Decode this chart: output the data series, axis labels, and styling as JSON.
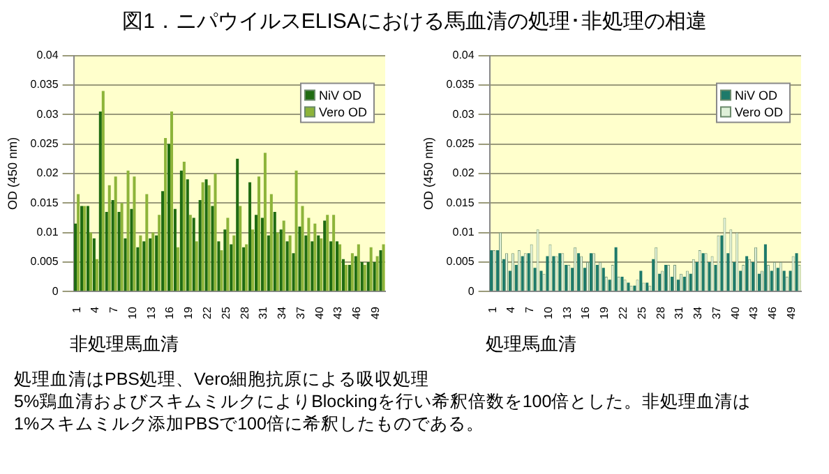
{
  "chart_data": [
    {
      "type": "bar",
      "title": "図1．ニパウイルスELISAにおける馬血清の処理･非処理の相違",
      "xlabel": "非処理馬血清",
      "ylabel": "OD (450 nm)",
      "categories": [
        "1",
        null,
        null,
        "4",
        null,
        null,
        "7",
        null,
        null,
        "10",
        null,
        null,
        "13",
        null,
        null,
        "16",
        null,
        null,
        "19",
        null,
        null,
        "22",
        null,
        null,
        "25",
        null,
        null,
        "28",
        null,
        null,
        "31",
        null,
        null,
        "34",
        null,
        null,
        "37",
        null,
        null,
        "40",
        null,
        null,
        "43",
        null,
        null,
        "46",
        null,
        null,
        "49",
        null
      ],
      "series": [
        {
          "name": "NiV OD",
          "color": "#1f6b12",
          "values": [
            0.0115,
            0.0145,
            0.0145,
            0.009,
            0.0305,
            0.0135,
            0.0155,
            0.0135,
            0.009,
            0.014,
            0.0075,
            0.0085,
            0.009,
            0.0095,
            0.017,
            0.025,
            0.014,
            0.0205,
            0.019,
            0.0125,
            0.0155,
            0.019,
            0.0145,
            0.0085,
            0.0105,
            0.008,
            0.0225,
            0.0075,
            0.0185,
            0.013,
            0.0125,
            0.0095,
            0.0135,
            0.0105,
            0.0085,
            0.0065,
            0.011,
            0.0095,
            0.0085,
            0.0095,
            0.012,
            0.0085,
            0.0085,
            0.0055,
            0.0045,
            0.006,
            0.005,
            0.005,
            0.005,
            0.007
          ]
        },
        {
          "name": "Vero OD",
          "color": "#8db43a",
          "values": [
            0.0165,
            0.0145,
            0.01,
            0.0055,
            0.034,
            0.018,
            0.0195,
            0.015,
            0.0205,
            0.0195,
            0.0095,
            0.0165,
            0.01,
            0.013,
            0.026,
            0.0305,
            0.0075,
            0.022,
            0.013,
            0.0085,
            0.0185,
            0.018,
            0.02,
            0.007,
            0.0125,
            0.0095,
            0.0145,
            0.008,
            0.0105,
            0.0195,
            0.0235,
            0.0165,
            0.01,
            0.012,
            0.0095,
            0.0205,
            0.0145,
            0.0125,
            0.0115,
            0.009,
            0.013,
            0.013,
            0.008,
            0.0045,
            0.0065,
            0.008,
            0.0045,
            0.0075,
            0.006,
            0.008
          ]
        }
      ],
      "ylim": [
        0,
        0.04
      ],
      "yticks": [
        0,
        0.005,
        0.01,
        0.015,
        0.02,
        0.025,
        0.03,
        0.035,
        0.04
      ],
      "grid": "y",
      "legend": "top right"
    },
    {
      "type": "bar",
      "xlabel": "処理馬血清",
      "ylabel": "OD (450 nm)",
      "categories": [
        "1",
        null,
        null,
        "4",
        null,
        null,
        "7",
        null,
        null,
        "10",
        null,
        null,
        "13",
        null,
        null,
        "16",
        null,
        null,
        "19",
        null,
        null,
        "22",
        null,
        null,
        "25",
        null,
        null,
        "28",
        null,
        null,
        "31",
        null,
        null,
        "34",
        null,
        null,
        "37",
        null,
        null,
        "40",
        null,
        null,
        "43",
        null,
        null,
        "46",
        null,
        null,
        "49",
        null
      ],
      "series": [
        {
          "name": "NiV OD",
          "color": "#1e7a6a",
          "values": [
            0.007,
            0.007,
            0.0055,
            0.0035,
            0.0045,
            0.006,
            0.0065,
            0.004,
            0.0035,
            0.006,
            0.006,
            0.0065,
            0.0045,
            0.004,
            0.0065,
            0.004,
            0.0065,
            0.0045,
            0.004,
            0.002,
            0.0075,
            0.0025,
            0.0015,
            0.001,
            0.0035,
            0.0015,
            0.0055,
            0.003,
            0.0045,
            0.0025,
            0.002,
            0.0025,
            0.003,
            0.005,
            0.0065,
            0.005,
            0.0045,
            0.0095,
            0.0065,
            0.005,
            0.0035,
            0.006,
            0.005,
            0.003,
            0.008,
            0.0035,
            0.004,
            0.0035,
            0.0035,
            0.0065
          ]
        },
        {
          "name": "Vero OD",
          "color": "#dff0d8",
          "values": [
            0.007,
            0.01,
            0.0065,
            0.0065,
            0.007,
            0.0065,
            0.008,
            0.0105,
            0.003,
            0.008,
            0.006,
            0.0065,
            0.0045,
            0.0075,
            0.006,
            0.005,
            0.0065,
            0.005,
            0.0025,
            0.0045,
            0.0025,
            0.002,
            0.001,
            0.002,
            0.0015,
            0.001,
            0.0075,
            0.0035,
            0.0045,
            0.0045,
            0.003,
            0.0035,
            0.0055,
            0.007,
            0.0065,
            0.006,
            0.0095,
            0.0125,
            0.0105,
            0.01,
            0.0045,
            0.0055,
            0.0075,
            0.0035,
            0.0045,
            0.005,
            0.005,
            0.0025,
            0.006,
            0.0045
          ]
        }
      ],
      "ylim": [
        0,
        0.04
      ],
      "yticks": [
        0,
        0.005,
        0.01,
        0.015,
        0.02,
        0.025,
        0.03,
        0.035,
        0.04
      ],
      "grid": "y",
      "legend": "top right",
      "annotations": [
        "処理血清はPBS処理、Vero細胞抗原による吸収処理",
        "5%鶏血清およびスキムミルクによりBlockingを行い希釈倍数を100倍とした。非処理血清は",
        "1%スキムミルク添加PBSで100倍に希釈したものである。"
      ]
    }
  ]
}
